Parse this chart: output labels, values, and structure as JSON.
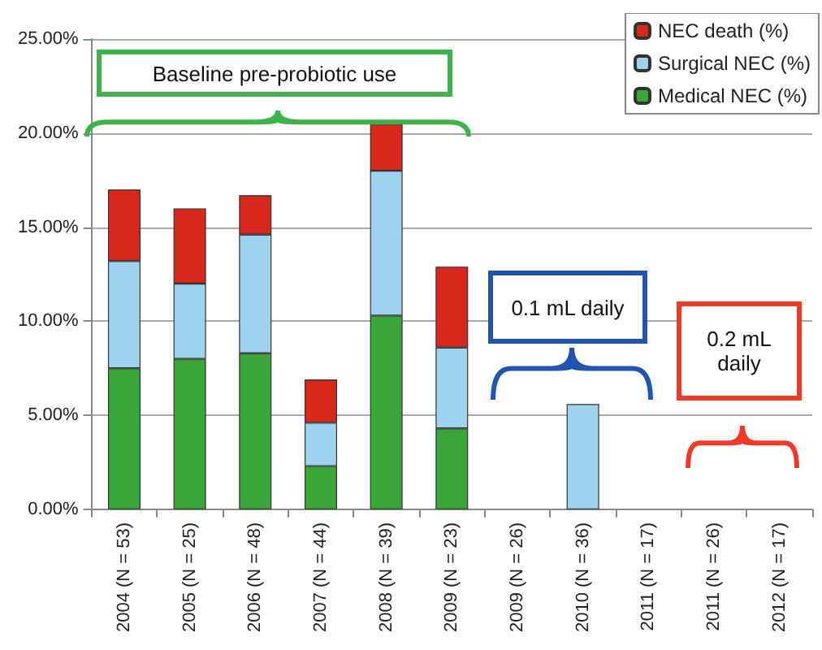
{
  "chart_data": {
    "type": "bar",
    "stacked": true,
    "categories": [
      "2004 (N = 53)",
      "2005 (N = 25)",
      "2006 (N = 48)",
      "2007 (N = 44)",
      "2008 (N = 39)",
      "2009 (N = 23)",
      "2009 (N = 26)",
      "2010 (N = 36)",
      "2011 (N = 17)",
      "2011 (N = 26)",
      "2012 (N = 17)"
    ],
    "series": [
      {
        "name": "Medical NEC (%)",
        "color": "#3aa63a",
        "values": [
          7.5,
          8.0,
          8.3,
          2.3,
          10.3,
          4.3,
          0,
          0,
          0,
          0,
          0
        ]
      },
      {
        "name": "Surgical NEC (%)",
        "color": "#9dd3ee",
        "values": [
          5.7,
          4.0,
          6.3,
          2.3,
          7.7,
          4.3,
          0,
          5.6,
          0,
          0,
          0
        ]
      },
      {
        "name": "NEC death (%)",
        "color": "#d8281c",
        "values": [
          3.8,
          4.0,
          2.1,
          2.3,
          2.5,
          4.3,
          0,
          0,
          0,
          0,
          0
        ]
      }
    ],
    "ylim": [
      0,
      25
    ],
    "yticks": [
      {
        "value": 0,
        "label": "0.00%"
      },
      {
        "value": 5,
        "label": "5.00%"
      },
      {
        "value": 10,
        "label": "10.00%"
      },
      {
        "value": 15,
        "label": "15.00%"
      },
      {
        "value": 20,
        "label": "20.00%"
      },
      {
        "value": 25,
        "label": "25.00%"
      }
    ],
    "grid": "y",
    "legend": "top right",
    "annotations": [
      "Baseline pre-probiotic use",
      "0.1 mL daily",
      "0.2 mL daily"
    ]
  }
}
